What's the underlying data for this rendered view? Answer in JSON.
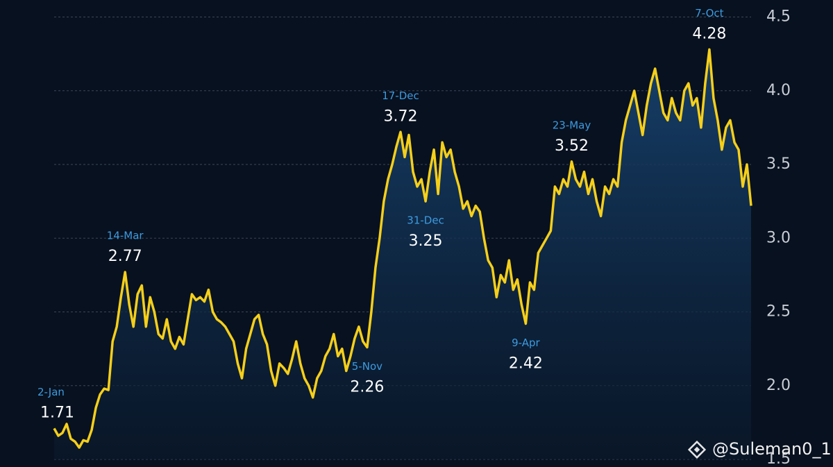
{
  "chart_data": {
    "type": "line",
    "categories": [
      "2-Jan",
      null,
      null,
      null,
      null,
      null,
      null,
      null,
      null,
      null,
      null,
      null,
      null,
      null,
      null,
      null,
      null,
      "14-Mar",
      null,
      null,
      null,
      null,
      null,
      null,
      null,
      null,
      null,
      null,
      null,
      null,
      null,
      null,
      null,
      null,
      null,
      null,
      null,
      null,
      null,
      null,
      null,
      null,
      null,
      null,
      null,
      null,
      null,
      null,
      null,
      null,
      null,
      null,
      null,
      null,
      null,
      null,
      null,
      null,
      null,
      null,
      null,
      null,
      null,
      null,
      null,
      null,
      null,
      null,
      null,
      null,
      null,
      null,
      null,
      null,
      null,
      "5-Nov",
      null,
      null,
      null,
      null,
      null,
      null,
      null,
      "17-Dec",
      null,
      null,
      null,
      null,
      null,
      "31-Dec",
      null,
      null,
      null,
      null,
      null,
      null,
      null,
      null,
      null,
      null,
      null,
      null,
      null,
      null,
      null,
      null,
      null,
      null,
      null,
      null,
      null,
      null,
      null,
      "9-Apr",
      null,
      null,
      null,
      null,
      null,
      null,
      null,
      null,
      null,
      null,
      "23-May",
      null,
      null,
      null,
      null,
      null,
      null,
      null,
      null,
      null,
      null,
      null,
      null,
      null,
      null,
      null,
      null,
      null,
      null,
      null,
      null,
      null,
      null,
      null,
      null,
      null,
      null,
      null,
      null,
      null,
      null,
      null,
      null,
      "7-Oct",
      null,
      null,
      null,
      null,
      null,
      null,
      null,
      null,
      null,
      null
    ],
    "series": [
      {
        "color": "#f5cf1a",
        "values": [
          1.71,
          1.66,
          1.68,
          1.74,
          1.64,
          1.62,
          1.58,
          1.63,
          1.62,
          1.7,
          1.85,
          1.94,
          1.98,
          1.97,
          2.3,
          2.4,
          2.6,
          2.77,
          2.55,
          2.4,
          2.62,
          2.68,
          2.4,
          2.6,
          2.5,
          2.35,
          2.32,
          2.45,
          2.3,
          2.25,
          2.33,
          2.28,
          2.45,
          2.62,
          2.58,
          2.6,
          2.57,
          2.65,
          2.5,
          2.45,
          2.43,
          2.4,
          2.35,
          2.3,
          2.15,
          2.05,
          2.25,
          2.35,
          2.45,
          2.48,
          2.35,
          2.28,
          2.1,
          2.0,
          2.15,
          2.12,
          2.08,
          2.18,
          2.3,
          2.15,
          2.05,
          2.0,
          1.92,
          2.05,
          2.1,
          2.2,
          2.25,
          2.35,
          2.2,
          2.25,
          2.1,
          2.2,
          2.32,
          2.4,
          2.3,
          2.26,
          2.5,
          2.8,
          3.0,
          3.25,
          3.4,
          3.5,
          3.62,
          3.72,
          3.55,
          3.7,
          3.45,
          3.35,
          3.4,
          3.25,
          3.45,
          3.6,
          3.3,
          3.65,
          3.55,
          3.6,
          3.45,
          3.35,
          3.2,
          3.25,
          3.15,
          3.22,
          3.18,
          3.0,
          2.85,
          2.8,
          2.6,
          2.75,
          2.7,
          2.85,
          2.65,
          2.72,
          2.55,
          2.42,
          2.7,
          2.65,
          2.9,
          2.95,
          3.0,
          3.05,
          3.35,
          3.3,
          3.4,
          3.35,
          3.52,
          3.4,
          3.35,
          3.45,
          3.3,
          3.4,
          3.25,
          3.15,
          3.35,
          3.3,
          3.4,
          3.35,
          3.65,
          3.8,
          3.9,
          4.0,
          3.85,
          3.7,
          3.9,
          4.05,
          4.15,
          4.0,
          3.85,
          3.8,
          3.95,
          3.85,
          3.8,
          4.0,
          4.05,
          3.9,
          3.95,
          3.75,
          4.05,
          4.28,
          3.95,
          3.8,
          3.6,
          3.75,
          3.8,
          3.65,
          3.6,
          3.35,
          3.5,
          3.22
        ]
      }
    ],
    "ylim": [
      1.5,
      4.5
    ],
    "yticks": [
      1.5,
      {
        "value": 2,
        "label": "2.0"
      },
      2.5,
      {
        "value": 3,
        "label": "3.0"
      },
      3.5,
      {
        "value": 4,
        "label": "4.0"
      },
      4.5
    ],
    "grid": true,
    "watermark": "@Suleman0_1"
  }
}
